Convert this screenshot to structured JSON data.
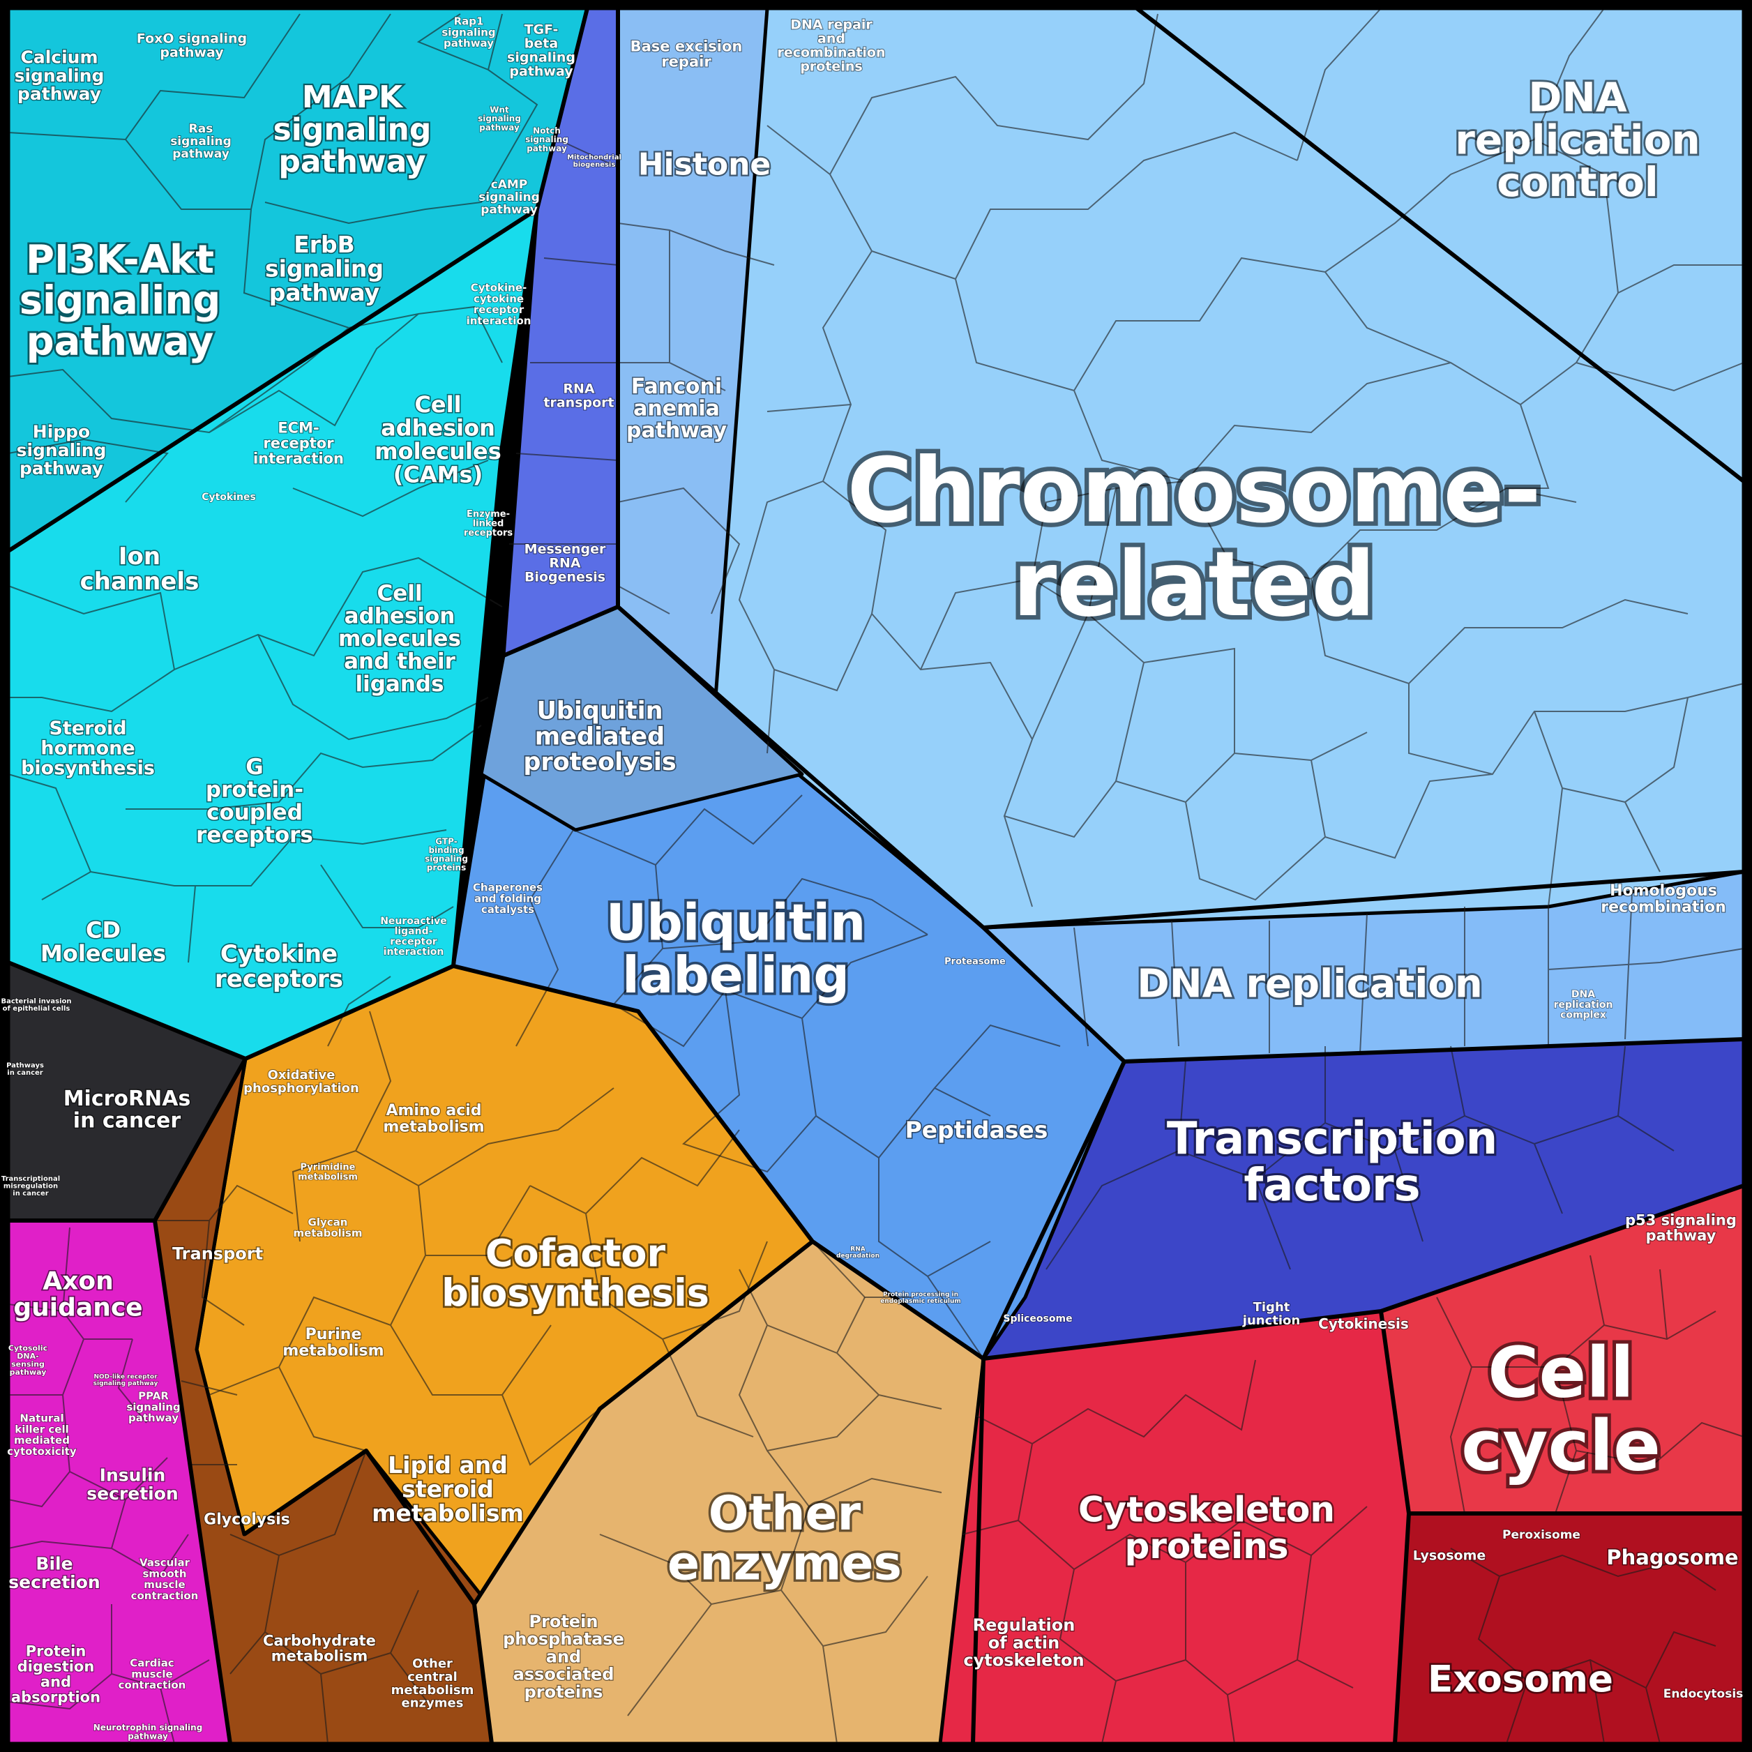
{
  "colors": {
    "background": "#000000",
    "signaling": "#14c6dc",
    "signaling_light": "#22e4f0",
    "chromosome": "#8cc8f4",
    "ubiquitin": "#5c9ef0",
    "rna_purple": "#5a6ee6",
    "transcription": "#3c46c8",
    "cofactor": "#f0a21e",
    "transport_brown": "#9a4a14",
    "enzymes_tan": "#e6b46e",
    "cytoskeleton_red": "#e62846",
    "cellcycle_red": "#e83848",
    "exosome_darkred": "#b01020",
    "magenta": "#e020c8",
    "microrna_dark": "#2a2a2e"
  },
  "regions": [
    {
      "key": "pi3k",
      "label": "PI3K-Akt\nsignaling\npathway"
    },
    {
      "key": "calcium",
      "label": "Calcium\nsignaling\npathway"
    },
    {
      "key": "foxo",
      "label": "FoxO signaling\npathway"
    },
    {
      "key": "rap1",
      "label": "Rap1\nsignaling\npathway"
    },
    {
      "key": "tgf",
      "label": "TGF-\nbeta\nsignaling\npathway"
    },
    {
      "key": "mapk",
      "label": "MAPK\nsignaling\npathway"
    },
    {
      "key": "ras",
      "label": "Ras\nsignaling\npathway"
    },
    {
      "key": "wnt",
      "label": "Wnt\nsignaling\npathway"
    },
    {
      "key": "notch",
      "label": "Notch\nsignaling\npathway"
    },
    {
      "key": "camp",
      "label": "cAMP\nsignaling\npathway"
    },
    {
      "key": "erbb",
      "label": "ErbB\nsignaling\npathway"
    },
    {
      "key": "cytokine_cytokine",
      "label": "Cytokine-\ncytokine\nreceptor\ninteraction"
    },
    {
      "key": "hippo",
      "label": "Hippo\nsignaling\npathway"
    },
    {
      "key": "ecm",
      "label": "ECM-\nreceptor\ninteraction"
    },
    {
      "key": "cams",
      "label": "Cell\nadhesion\nmolecules\n(CAMs)"
    },
    {
      "key": "cytokines",
      "label": "Cytokines"
    },
    {
      "key": "enzyme_linked",
      "label": "Enzyme-\nlinked\nreceptors"
    },
    {
      "key": "ion",
      "label": "Ion\nchannels"
    },
    {
      "key": "cam_ligands",
      "label": "Cell\nadhesion\nmolecules\nand their\nligands"
    },
    {
      "key": "steroid_hormone",
      "label": "Steroid\nhormone\nbiosynthesis"
    },
    {
      "key": "gpcr",
      "label": "G\nprotein-\ncoupled\nreceptors"
    },
    {
      "key": "gtp",
      "label": "GTP-\nbinding\nsignaling\nproteins"
    },
    {
      "key": "cd",
      "label": "CD\nMolecules"
    },
    {
      "key": "cytokine_receptors",
      "label": "Cytokine\nreceptors"
    },
    {
      "key": "neuroactive",
      "label": "Neuroactive\nligand-\nreceptor\ninteraction"
    },
    {
      "key": "bacterial",
      "label": "Bacterial invasion\nof epithelial cells"
    },
    {
      "key": "pathways_cancer",
      "label": "Pathways\nin cancer"
    },
    {
      "key": "micrornas",
      "label": "MicroRNAs\nin cancer"
    },
    {
      "key": "transcriptional_mis",
      "label": "Transcriptional\nmisregulation\nin cancer"
    },
    {
      "key": "mitochondrial",
      "label": "Mitochondrial\nbiogenesis"
    },
    {
      "key": "rna_transport",
      "label": "RNA\ntransport"
    },
    {
      "key": "mrna_biogenesis",
      "label": "Messenger\nRNA\nBiogenesis"
    },
    {
      "key": "base_excision",
      "label": "Base excision\nrepair"
    },
    {
      "key": "dna_repair",
      "label": "DNA repair\nand\nrecombination\nproteins"
    },
    {
      "key": "histone",
      "label": "Histone"
    },
    {
      "key": "fanconi",
      "label": "Fanconi\nanemia\npathway"
    },
    {
      "key": "dna_rep_control",
      "label": "DNA\nreplication\ncontrol"
    },
    {
      "key": "chromosome",
      "label": "Chromosome-\nrelated"
    },
    {
      "key": "homologous",
      "label": "Homologous\nrecombination"
    },
    {
      "key": "dna_replication",
      "label": "DNA replication"
    },
    {
      "key": "dna_rep_complex",
      "label": "DNA\nreplication\ncomplex"
    },
    {
      "key": "ubiq_proteolysis",
      "label": "Ubiquitin\nmediated\nproteolysis"
    },
    {
      "key": "chaperones",
      "label": "Chaperones\nand folding\ncatalysts"
    },
    {
      "key": "ubiq_labeling",
      "label": "Ubiquitin\nlabeling"
    },
    {
      "key": "proteasome",
      "label": "Proteasome"
    },
    {
      "key": "peptidases",
      "label": "Peptidases"
    },
    {
      "key": "rna_degradation",
      "label": "RNA\ndegradation"
    },
    {
      "key": "protein_processing",
      "label": "Protein processing in\nendoplasmic reticulum"
    },
    {
      "key": "spliceosome",
      "label": "Spliceosome"
    },
    {
      "key": "transcription_factors",
      "label": "Transcription\nfactors"
    },
    {
      "key": "oxphos",
      "label": "Oxidative\nphosphorylation"
    },
    {
      "key": "amino_acid",
      "label": "Amino acid\nmetabolism"
    },
    {
      "key": "pyrimidine",
      "label": "Pyrimidine\nmetabolism"
    },
    {
      "key": "glycan",
      "label": "Glycan\nmetabolism"
    },
    {
      "key": "transport",
      "label": "Transport"
    },
    {
      "key": "cofactor",
      "label": "Cofactor\nbiosynthesis"
    },
    {
      "key": "purine",
      "label": "Purine\nmetabolism"
    },
    {
      "key": "lipid",
      "label": "Lipid and\nsteroid\nmetabolism"
    },
    {
      "key": "glycolysis",
      "label": "Glycolysis"
    },
    {
      "key": "carbohydrate",
      "label": "Carbohydrate\nmetabolism"
    },
    {
      "key": "other_central",
      "label": "Other\ncentral\nmetabolism\nenzymes"
    },
    {
      "key": "protein_phosphatase",
      "label": "Protein\nphosphatase\nand\nassociated\nproteins"
    },
    {
      "key": "other_enzymes",
      "label": "Other\nenzymes"
    },
    {
      "key": "axon",
      "label": "Axon\nguidance"
    },
    {
      "key": "cytosolic_dna",
      "label": "Cytosolic\nDNA-\nsensing\npathway"
    },
    {
      "key": "nod",
      "label": "NOD-like receptor\nsignaling pathway"
    },
    {
      "key": "ppar",
      "label": "PPAR\nsignaling\npathway"
    },
    {
      "key": "nk",
      "label": "Natural\nkiller cell\nmediated\ncytotoxicity"
    },
    {
      "key": "insulin",
      "label": "Insulin\nsecretion"
    },
    {
      "key": "bile",
      "label": "Bile\nsecretion"
    },
    {
      "key": "vascular",
      "label": "Vascular\nsmooth\nmuscle\ncontraction"
    },
    {
      "key": "protein_digestion",
      "label": "Protein\ndigestion\nand\nabsorption"
    },
    {
      "key": "cardiac",
      "label": "Cardiac\nmuscle\ncontraction"
    },
    {
      "key": "neurotrophin",
      "label": "Neurotrophin signaling\npathway"
    },
    {
      "key": "p53",
      "label": "p53 signaling\npathway"
    },
    {
      "key": "tight_junction",
      "label": "Tight\njunction"
    },
    {
      "key": "cytokinesis",
      "label": "Cytokinesis"
    },
    {
      "key": "cell_cycle",
      "label": "Cell\ncycle"
    },
    {
      "key": "cytoskeleton",
      "label": "Cytoskeleton\nproteins"
    },
    {
      "key": "regulation_actin",
      "label": "Regulation\nof actin\ncytoskeleton"
    },
    {
      "key": "lysosome",
      "label": "Lysosome"
    },
    {
      "key": "peroxisome",
      "label": "Peroxisome"
    },
    {
      "key": "phagosome",
      "label": "Phagosome"
    },
    {
      "key": "exosome",
      "label": "Exosome"
    },
    {
      "key": "endocytosis",
      "label": "Endocytosis"
    }
  ]
}
